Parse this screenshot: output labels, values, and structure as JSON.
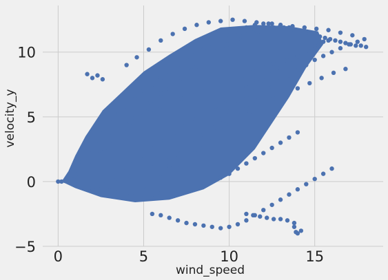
{
  "chart_data": {
    "type": "scatter",
    "title": "",
    "xlabel": "wind_speed",
    "ylabel": "velocity_y",
    "xlim": [
      -0.9,
      19.0
    ],
    "ylim": [
      -5.0,
      13.6
    ],
    "xticks": [
      0,
      5,
      10,
      15
    ],
    "yticks": [
      -5,
      0,
      5,
      10
    ],
    "xtick_labels": [
      "0",
      "5",
      "10",
      "15"
    ],
    "ytick_labels": [
      "−5",
      "0",
      "5",
      "10"
    ],
    "grid": true,
    "marker_color": "#4c72b0",
    "background_color": "#f0f0f0",
    "grid_color": "#cbcbcb",
    "series": [
      {
        "values_description_omitted": true,
        "x": [
          0.0,
          0.2,
          0.4,
          0.6,
          0.8,
          1.0,
          1.2,
          1.5,
          1.8,
          2.1,
          2.4,
          2.7,
          3.0,
          3.3,
          3.6,
          3.9,
          4.2,
          4.5,
          4.8,
          5.1,
          5.4,
          5.7,
          6.0,
          6.3,
          6.6,
          6.9,
          7.2,
          7.5,
          7.8,
          8.1,
          8.4,
          8.7,
          9.0,
          9.3,
          9.6,
          9.9,
          10.2,
          10.5,
          10.8,
          11.1,
          11.4,
          11.7,
          12.0,
          12.3,
          12.6,
          12.9,
          13.2,
          13.5,
          13.8,
          14.1,
          14.4,
          14.7,
          15.0,
          15.3,
          15.6,
          15.9,
          16.2,
          16.5,
          16.8,
          17.1,
          17.4,
          17.7,
          18.0,
          1.0,
          1.5,
          2.0,
          2.5,
          3.0,
          3.5,
          4.0,
          4.5,
          5.0,
          5.5,
          6.0,
          6.5,
          7.0,
          7.5,
          8.0,
          8.5,
          9.0,
          9.5,
          10.0,
          10.5,
          11.0,
          11.5,
          12.0,
          12.5,
          13.0,
          13.5,
          14.0,
          1.2,
          1.8,
          2.4,
          3.0,
          3.6,
          4.2,
          4.8,
          5.4,
          6.0,
          6.6,
          7.2,
          7.8,
          8.4,
          9.0,
          9.6,
          10.2,
          10.8,
          11.4,
          12.0,
          12.6,
          13.2,
          13.8,
          2.0,
          2.6,
          3.2,
          3.8,
          4.4,
          5.0,
          5.6,
          6.2,
          6.8,
          7.4,
          8.0,
          8.6,
          9.2,
          9.8,
          10.4,
          11.0,
          11.6,
          12.2,
          12.8,
          13.4,
          14.0,
          14.6,
          15.2,
          15.8,
          1.7,
          2.0,
          2.3,
          2.6,
          4.0,
          4.6,
          5.3,
          6.0,
          6.7,
          7.4,
          8.1,
          8.8,
          9.5,
          10.2,
          10.9,
          11.6,
          12.3,
          13.0,
          13.7,
          14.4,
          15.1,
          15.8,
          16.5,
          17.2,
          17.9,
          2.5,
          3.0,
          3.5,
          4.0,
          4.5,
          5.0,
          5.5,
          6.0,
          6.5,
          7.0,
          7.5,
          8.0,
          8.5,
          9.0,
          9.5,
          10.0,
          10.5,
          11.0,
          11.5,
          12.0,
          12.5,
          13.0,
          13.5,
          3.5,
          4.2,
          4.9,
          5.6,
          6.3,
          7.0,
          7.7,
          8.4,
          9.1,
          9.8,
          10.5,
          11.2,
          11.9,
          12.6,
          13.3,
          14.0,
          14.7,
          15.4,
          16.1,
          16.8,
          5.5,
          6.0,
          6.5,
          7.0,
          7.5,
          8.0,
          8.5,
          9.0,
          9.5,
          10.0,
          10.5,
          11.0,
          11.5,
          12.0,
          12.5,
          13.0,
          13.5,
          14.0,
          14.5,
          15.0,
          15.5,
          16.0,
          7.0,
          7.5,
          8.0,
          8.5,
          9.0,
          9.5,
          10.0,
          10.5,
          11.0,
          11.5,
          12.0,
          12.5,
          13.0,
          13.5,
          14.0,
          14.5,
          15.0,
          15.5,
          16.0,
          16.5,
          17.0,
          17.5,
          11.0,
          11.4,
          11.8,
          12.2,
          12.6,
          13.0,
          13.4,
          13.8,
          14.2,
          13.8,
          13.9,
          14.0,
          4.5,
          5.0,
          5.5,
          6.0,
          6.5,
          7.0,
          7.5,
          8.0,
          8.5,
          9.0,
          9.5,
          10.0,
          10.5,
          11.0,
          11.5,
          12.0,
          12.5,
          13.0,
          13.5,
          14.0,
          14.5,
          15.0,
          15.5
        ],
        "y": [
          0.0,
          0.0,
          0.05,
          0.1,
          0.2,
          0.4,
          0.6,
          0.9,
          1.3,
          1.7,
          2.1,
          2.5,
          2.9,
          3.3,
          3.7,
          4.1,
          4.5,
          4.9,
          5.3,
          5.7,
          6.1,
          6.4,
          6.8,
          7.1,
          7.4,
          7.7,
          8.0,
          8.3,
          8.6,
          8.9,
          9.2,
          9.5,
          9.8,
          10.1,
          10.4,
          10.6,
          10.8,
          11.0,
          11.2,
          11.4,
          11.5,
          11.6,
          11.7,
          11.8,
          11.9,
          11.9,
          11.9,
          11.8,
          11.7,
          11.6,
          11.5,
          11.4,
          11.3,
          11.2,
          11.1,
          11.0,
          10.9,
          10.8,
          10.7,
          10.6,
          10.5,
          10.5,
          10.4,
          -0.2,
          -0.3,
          -0.5,
          -0.6,
          -0.7,
          -0.8,
          -0.9,
          -0.9,
          -1.0,
          -1.0,
          -0.9,
          -0.9,
          -0.8,
          -0.7,
          -0.5,
          -0.3,
          0.0,
          0.3,
          0.6,
          1.0,
          1.4,
          1.8,
          2.2,
          2.6,
          3.0,
          3.4,
          3.8,
          1.5,
          2.2,
          2.9,
          3.5,
          4.1,
          4.6,
          5.0,
          5.4,
          5.8,
          6.1,
          6.4,
          6.7,
          7.0,
          7.3,
          7.6,
          7.9,
          8.2,
          8.5,
          8.8,
          9.1,
          9.4,
          9.6,
          -0.5,
          -0.2,
          0.3,
          0.8,
          1.4,
          2.0,
          2.6,
          3.2,
          3.8,
          4.3,
          4.8,
          5.3,
          5.8,
          6.3,
          6.8,
          7.3,
          7.8,
          8.3,
          8.8,
          9.3,
          9.7,
          10.1,
          10.5,
          10.9,
          8.3,
          8.0,
          8.2,
          7.9,
          9.0,
          9.6,
          10.2,
          10.9,
          11.4,
          11.8,
          12.1,
          12.3,
          12.4,
          12.5,
          12.4,
          12.3,
          12.2,
          12.1,
          12.0,
          11.9,
          11.8,
          11.7,
          11.5,
          11.3,
          11.0,
          4.0,
          4.6,
          5.2,
          5.8,
          6.4,
          7.0,
          7.5,
          8.0,
          8.5,
          9.0,
          9.4,
          9.8,
          10.2,
          10.6,
          11.0,
          11.3,
          11.6,
          11.9,
          12.1,
          12.2,
          12.2,
          12.1,
          11.9,
          0.0,
          0.4,
          0.9,
          1.4,
          1.9,
          2.4,
          2.9,
          3.4,
          3.9,
          4.4,
          4.9,
          5.4,
          5.9,
          6.4,
          6.8,
          7.2,
          7.6,
          8.0,
          8.4,
          8.7,
          -2.5,
          -2.6,
          -2.8,
          -3.0,
          -3.2,
          -3.3,
          -3.4,
          -3.5,
          -3.6,
          -3.5,
          -3.3,
          -3.0,
          -2.6,
          -2.2,
          -1.8,
          -1.4,
          -1.0,
          -0.6,
          -0.2,
          0.2,
          0.6,
          1.0,
          1.0,
          1.6,
          2.2,
          2.8,
          3.4,
          4.0,
          4.6,
          5.2,
          5.8,
          6.3,
          6.8,
          7.3,
          7.8,
          8.2,
          8.6,
          9.0,
          9.4,
          9.7,
          10.0,
          10.3,
          10.6,
          10.8,
          -2.5,
          -2.6,
          -2.7,
          -2.8,
          -2.9,
          -2.9,
          -3.0,
          -3.2,
          -3.8,
          -3.5,
          -3.9,
          -4.0,
          -0.8,
          -0.4,
          0.1,
          0.6,
          1.2,
          1.8,
          2.4,
          3.0,
          3.6,
          4.2,
          4.8,
          5.4,
          6.0,
          6.6,
          7.2,
          7.8,
          8.3,
          8.8,
          9.3,
          9.7,
          10.1,
          10.5,
          10.8
        ]
      }
    ]
  }
}
